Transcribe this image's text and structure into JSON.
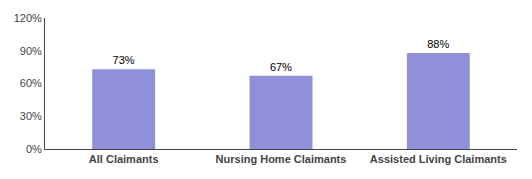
{
  "chart_data": {
    "type": "bar",
    "categories": [
      "All Claimants",
      "Nursing Home Claimants",
      "Assisted Living Claimants"
    ],
    "values": [
      73,
      67,
      88
    ],
    "value_labels": [
      "73%",
      "67%",
      "88%"
    ],
    "data_labels": true,
    "color": "#9090d8",
    "ylim": [
      0,
      120
    ],
    "yticks": [
      {
        "value": 0,
        "label": "0%"
      },
      {
        "value": 30,
        "label": "30%"
      },
      {
        "value": 60,
        "label": "60%"
      },
      {
        "value": 90,
        "label": "90%"
      },
      {
        "value": 120,
        "label": "120%"
      }
    ],
    "grid": false
  }
}
